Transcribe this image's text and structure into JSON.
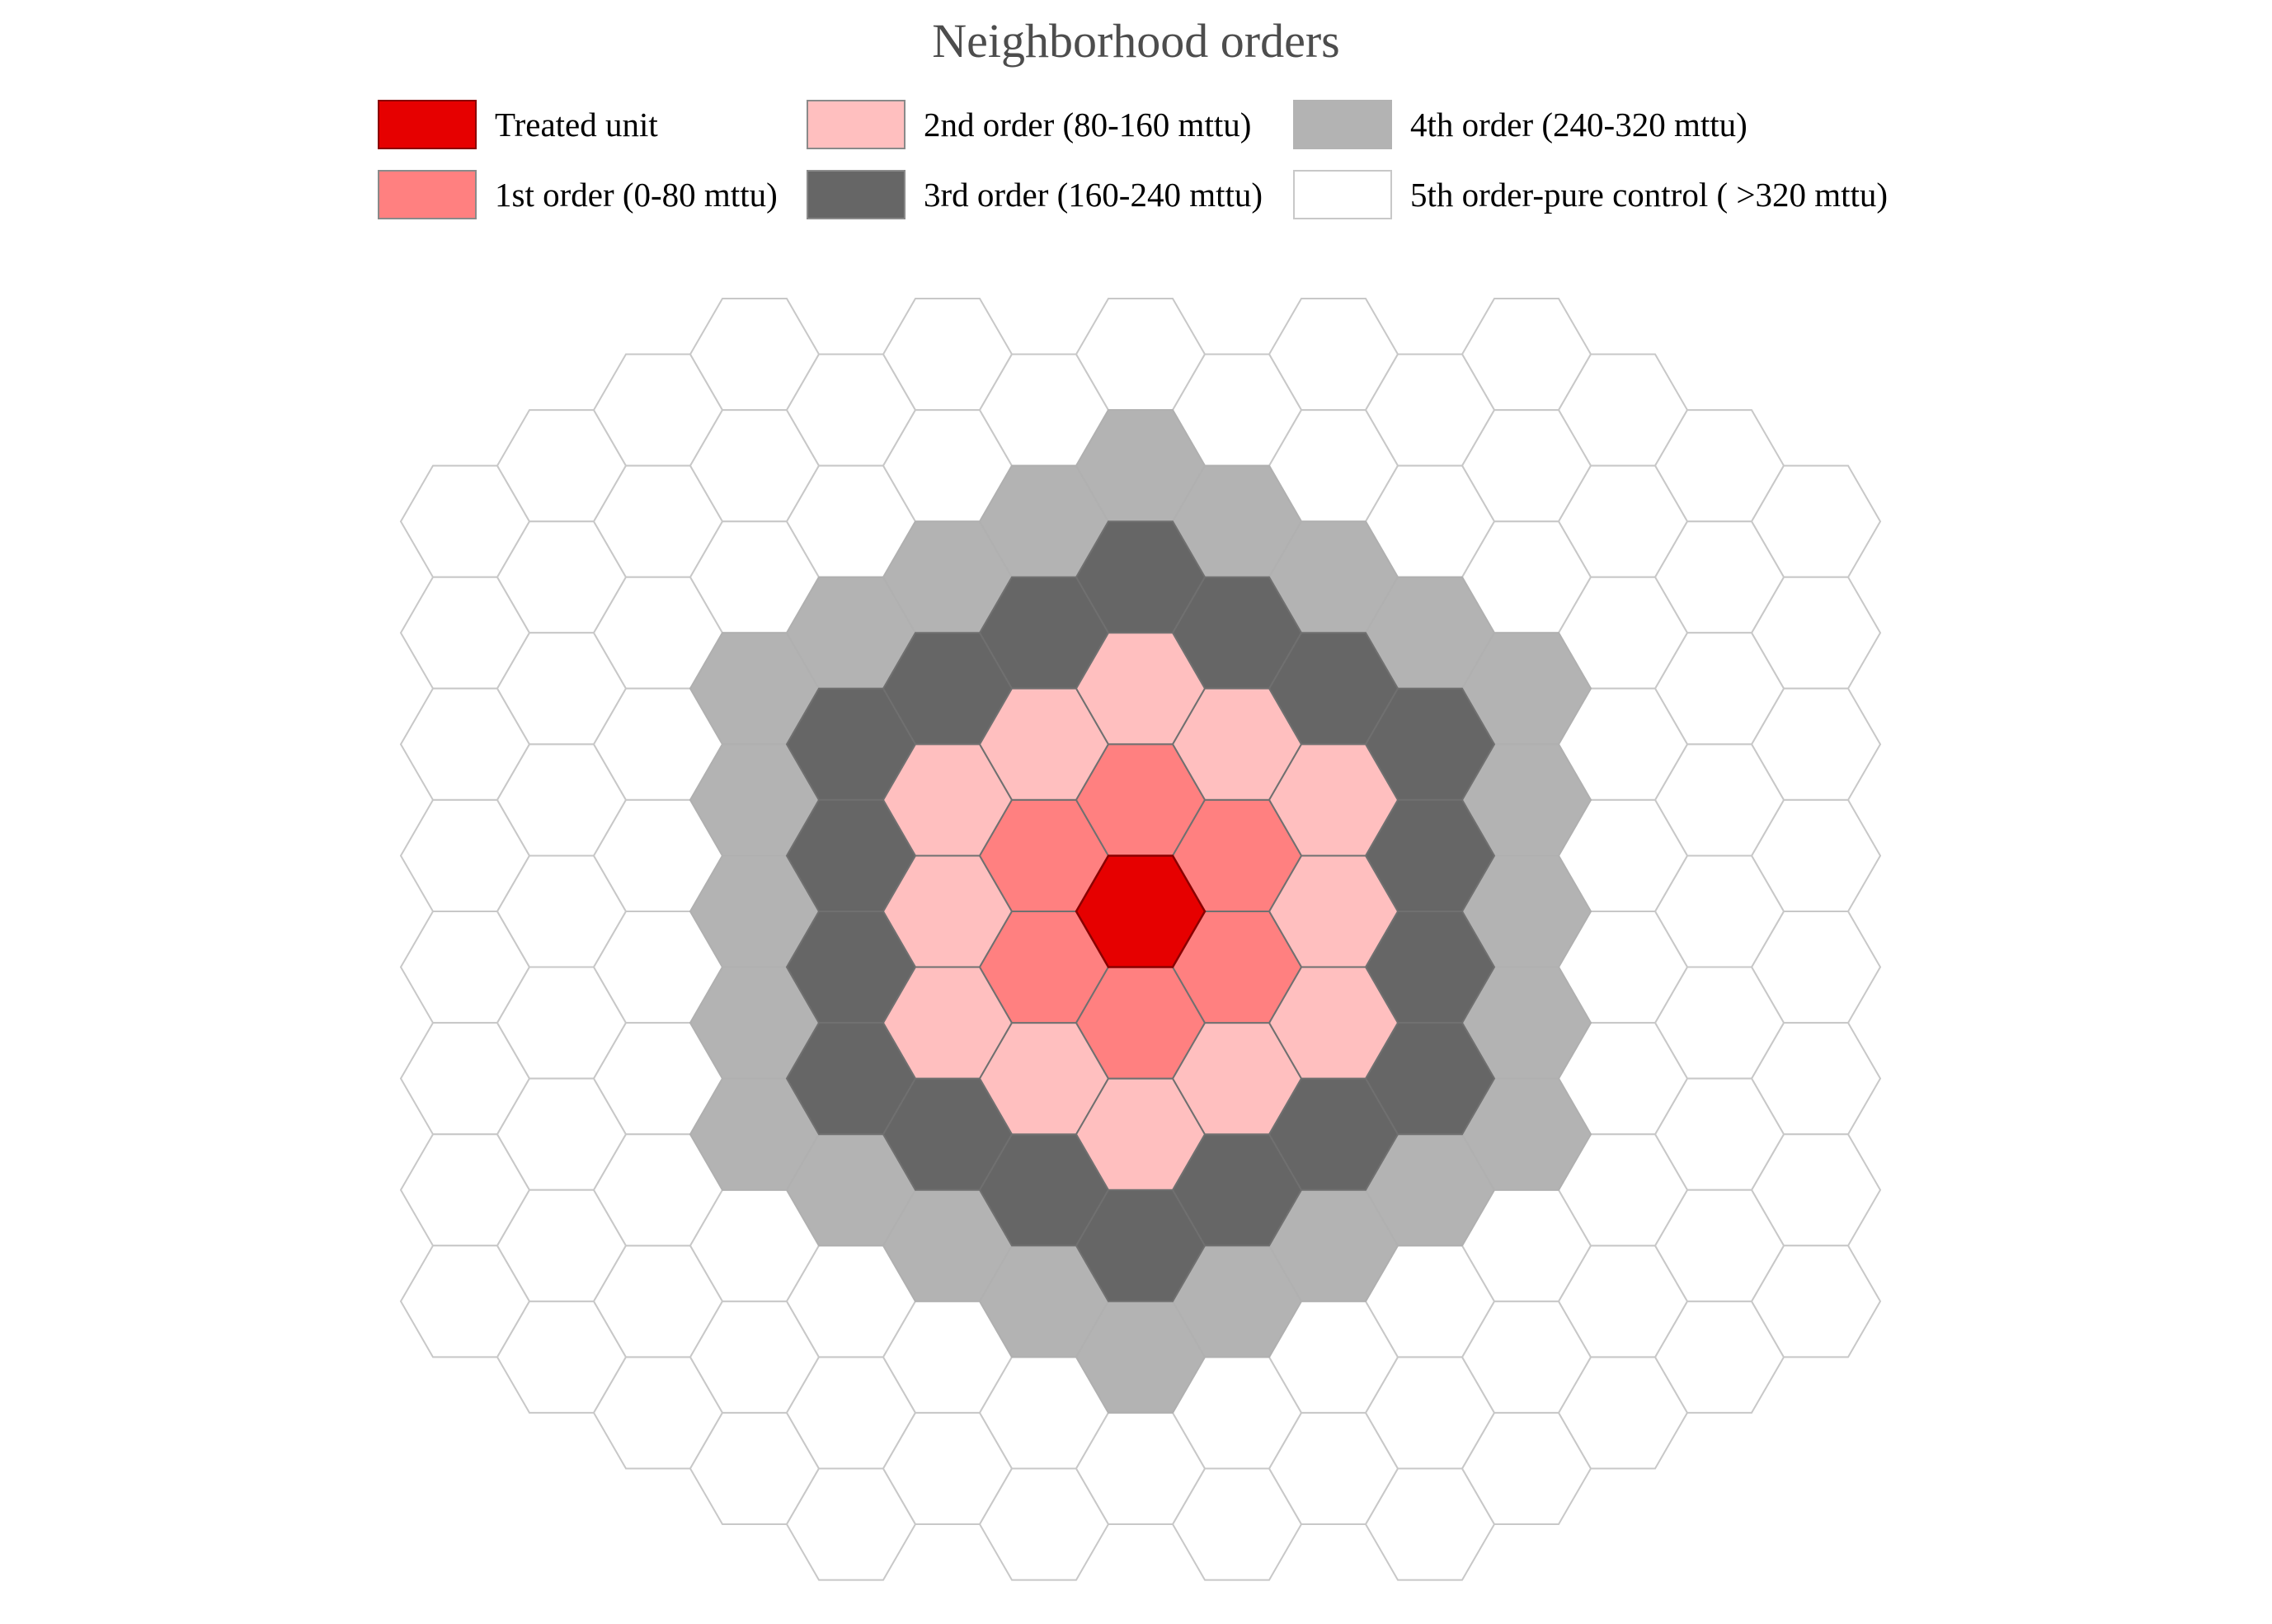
{
  "title": "Neighborhood orders",
  "legend": [
    {
      "label": "Treated unit",
      "color": "#e60000",
      "order": 0
    },
    {
      "label": "1st order (0-80 mttu)",
      "color": "#ff8080",
      "order": 1
    },
    {
      "label": "2nd order (80-160 mttu)",
      "color": "#ffbfbf",
      "order": 2
    },
    {
      "label": "3rd order (160-240 mttu)",
      "color": "#666666",
      "order": 3
    },
    {
      "label": "4th order (240-320 mttu)",
      "color": "#b3b3b3",
      "order": 4
    },
    {
      "label": "5th order-pure control ( >320 mttu)",
      "color": "#ffffff",
      "order": 5
    }
  ],
  "grid": {
    "type": "hexagonal",
    "hex_orientation": "flat-top",
    "max_ring": 7,
    "colored_rings": 4,
    "ring_edge_colors": [
      "#8a0000",
      "#707070",
      "#707070",
      "#707070",
      "#b0b0b0",
      "#c8c8c8"
    ]
  }
}
